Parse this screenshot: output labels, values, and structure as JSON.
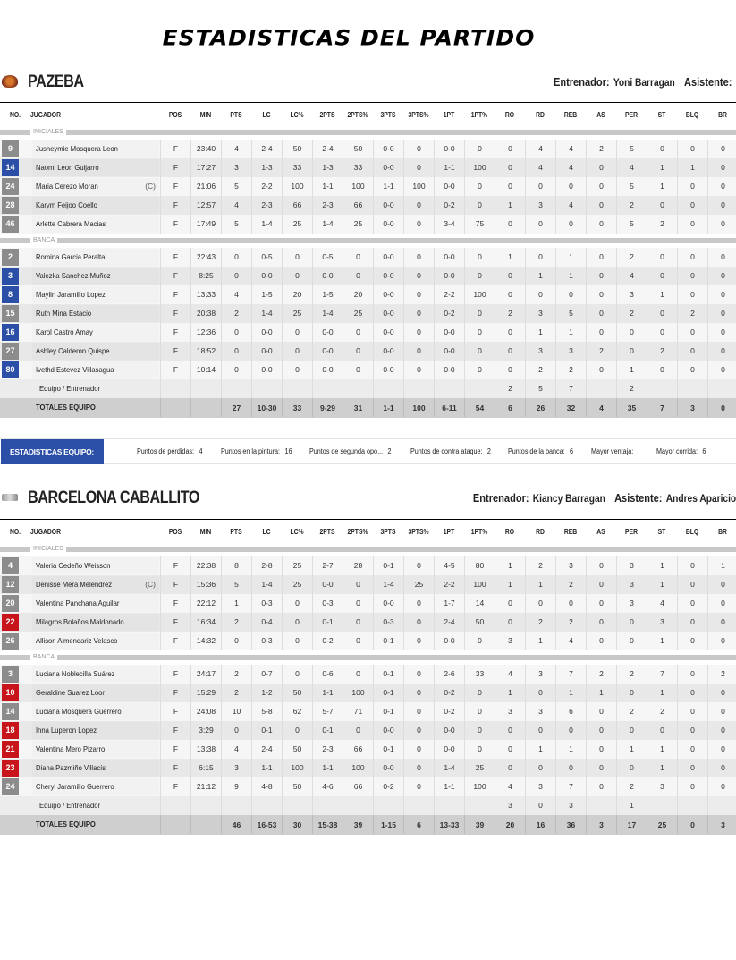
{
  "page_title": "ESTADISTICAS DEL PARTIDO",
  "colors": {
    "gray": "#8c8c8c",
    "blue": "#2b4fa6",
    "red": "#c8151b"
  },
  "columns": [
    "NO.",
    "JUGADOR",
    "POS",
    "MIN",
    "PTS",
    "LC",
    "LC%",
    "2PTS",
    "2PTS%",
    "3PTS",
    "3PTS%",
    "1PT",
    "1PT%",
    "RO",
    "RD",
    "REB",
    "AS",
    "PER",
    "ST",
    "BLQ",
    "BR"
  ],
  "section_labels": {
    "starters": "INICIALES",
    "bench": "BANCA"
  },
  "teams": [
    {
      "name": "PAZEBA",
      "logo_icon": "pazeba-crest-icon",
      "coach_label": "Entrenador:",
      "coach": "Yoni Barragan",
      "assistant_label": "Asistente:",
      "assistant": "",
      "starters": [
        {
          "no": "9",
          "badge": "gray",
          "name": "Jusheymie Mosquera Leon",
          "cap": "",
          "stats": [
            "F",
            "23:40",
            "4",
            "2-4",
            "50",
            "2-4",
            "50",
            "0-0",
            "0",
            "0-0",
            "0",
            "0",
            "4",
            "4",
            "2",
            "5",
            "0",
            "0",
            "0"
          ]
        },
        {
          "no": "14",
          "badge": "blue",
          "name": "Naomi Leon Guijarro",
          "cap": "",
          "stats": [
            "F",
            "17:27",
            "3",
            "1-3",
            "33",
            "1-3",
            "33",
            "0-0",
            "0",
            "1-1",
            "100",
            "0",
            "4",
            "4",
            "0",
            "4",
            "1",
            "1",
            "0"
          ]
        },
        {
          "no": "24",
          "badge": "gray",
          "name": "Maria Cerezo Moran",
          "cap": "(C)",
          "stats": [
            "F",
            "21:06",
            "5",
            "2-2",
            "100",
            "1-1",
            "100",
            "1-1",
            "100",
            "0-0",
            "0",
            "0",
            "0",
            "0",
            "0",
            "5",
            "1",
            "0",
            "0"
          ]
        },
        {
          "no": "28",
          "badge": "gray",
          "name": "Karym Feijoo Coello",
          "cap": "",
          "stats": [
            "F",
            "12:57",
            "4",
            "2-3",
            "66",
            "2-3",
            "66",
            "0-0",
            "0",
            "0-2",
            "0",
            "1",
            "3",
            "4",
            "0",
            "2",
            "0",
            "0",
            "0"
          ]
        },
        {
          "no": "46",
          "badge": "gray",
          "name": "Arlette Cabrera Macias",
          "cap": "",
          "stats": [
            "F",
            "17:49",
            "5",
            "1-4",
            "25",
            "1-4",
            "25",
            "0-0",
            "0",
            "3-4",
            "75",
            "0",
            "0",
            "0",
            "0",
            "5",
            "2",
            "0",
            "0"
          ]
        }
      ],
      "bench": [
        {
          "no": "2",
          "badge": "gray",
          "name": "Romina Garcia Peralta",
          "cap": "",
          "stats": [
            "F",
            "22:43",
            "0",
            "0-5",
            "0",
            "0-5",
            "0",
            "0-0",
            "0",
            "0-0",
            "0",
            "1",
            "0",
            "1",
            "0",
            "2",
            "0",
            "0",
            "0"
          ]
        },
        {
          "no": "3",
          "badge": "blue",
          "name": "Valezka Sanchez Muñoz",
          "cap": "",
          "stats": [
            "F",
            "8:25",
            "0",
            "0-0",
            "0",
            "0-0",
            "0",
            "0-0",
            "0",
            "0-0",
            "0",
            "0",
            "1",
            "1",
            "0",
            "4",
            "0",
            "0",
            "0"
          ]
        },
        {
          "no": "8",
          "badge": "blue",
          "name": "Maylin Jaramillo Lopez",
          "cap": "",
          "stats": [
            "F",
            "13:33",
            "4",
            "1-5",
            "20",
            "1-5",
            "20",
            "0-0",
            "0",
            "2-2",
            "100",
            "0",
            "0",
            "0",
            "0",
            "3",
            "1",
            "0",
            "0"
          ]
        },
        {
          "no": "15",
          "badge": "gray",
          "name": "Ruth Mina Estacio",
          "cap": "",
          "stats": [
            "F",
            "20:38",
            "2",
            "1-4",
            "25",
            "1-4",
            "25",
            "0-0",
            "0",
            "0-2",
            "0",
            "2",
            "3",
            "5",
            "0",
            "2",
            "0",
            "2",
            "0"
          ]
        },
        {
          "no": "16",
          "badge": "blue",
          "name": "Karol Castro Amay",
          "cap": "",
          "stats": [
            "F",
            "12:36",
            "0",
            "0-0",
            "0",
            "0-0",
            "0",
            "0-0",
            "0",
            "0-0",
            "0",
            "0",
            "1",
            "1",
            "0",
            "0",
            "0",
            "0",
            "0"
          ]
        },
        {
          "no": "27",
          "badge": "gray",
          "name": "Ashley Calderon Quispe",
          "cap": "",
          "stats": [
            "F",
            "18:52",
            "0",
            "0-0",
            "0",
            "0-0",
            "0",
            "0-0",
            "0",
            "0-0",
            "0",
            "0",
            "3",
            "3",
            "2",
            "0",
            "2",
            "0",
            "0"
          ]
        },
        {
          "no": "80",
          "badge": "blue",
          "name": "Ivethd Estevez Villasagua",
          "cap": "",
          "stats": [
            "F",
            "10:14",
            "0",
            "0-0",
            "0",
            "0-0",
            "0",
            "0-0",
            "0",
            "0-0",
            "0",
            "0",
            "2",
            "2",
            "0",
            "1",
            "0",
            "0",
            "0"
          ]
        }
      ],
      "team_row": {
        "name": "Equipo / Entrenador",
        "stats": [
          "",
          "",
          "",
          "",
          "",
          "",
          "",
          "",
          "",
          "",
          "",
          "2",
          "5",
          "7",
          "",
          "2",
          "",
          "",
          ""
        ]
      },
      "totals": {
        "name": "TOTALES EQUIPO",
        "stats": [
          "",
          "",
          "27",
          "10-30",
          "33",
          "9-29",
          "31",
          "1-1",
          "100",
          "6-11",
          "54",
          "6",
          "26",
          "32",
          "4",
          "35",
          "7",
          "3",
          "0"
        ]
      }
    },
    {
      "name": "BARCELONA CABALLITO",
      "logo_icon": "barcelona-caballito-crest-icon",
      "coach_label": "Entrenador:",
      "coach": "Kiancy Barragan",
      "assistant_label": "Asistente:",
      "assistant": "Andres Aparicio",
      "starters": [
        {
          "no": "4",
          "badge": "gray",
          "name": "Valeria Cedeño Weisson",
          "cap": "",
          "stats": [
            "F",
            "22:38",
            "8",
            "2-8",
            "25",
            "2-7",
            "28",
            "0-1",
            "0",
            "4-5",
            "80",
            "1",
            "2",
            "3",
            "0",
            "3",
            "1",
            "0",
            "1"
          ]
        },
        {
          "no": "12",
          "badge": "gray",
          "name": "Denisse Mera Melendrez",
          "cap": "(C)",
          "stats": [
            "F",
            "15:36",
            "5",
            "1-4",
            "25",
            "0-0",
            "0",
            "1-4",
            "25",
            "2-2",
            "100",
            "1",
            "1",
            "2",
            "0",
            "3",
            "1",
            "0",
            "0"
          ]
        },
        {
          "no": "20",
          "badge": "gray",
          "name": "Valentina Panchana Aguilar",
          "cap": "",
          "stats": [
            "F",
            "22:12",
            "1",
            "0-3",
            "0",
            "0-3",
            "0",
            "0-0",
            "0",
            "1-7",
            "14",
            "0",
            "0",
            "0",
            "0",
            "3",
            "4",
            "0",
            "0"
          ]
        },
        {
          "no": "22",
          "badge": "red",
          "name": "Milagros Bolaños Maldonado",
          "cap": "",
          "stats": [
            "F",
            "16:34",
            "2",
            "0-4",
            "0",
            "0-1",
            "0",
            "0-3",
            "0",
            "2-4",
            "50",
            "0",
            "2",
            "2",
            "0",
            "0",
            "3",
            "0",
            "0"
          ]
        },
        {
          "no": "26",
          "badge": "gray",
          "name": "Allison Almendariz Velasco",
          "cap": "",
          "stats": [
            "F",
            "14:32",
            "0",
            "0-3",
            "0",
            "0-2",
            "0",
            "0-1",
            "0",
            "0-0",
            "0",
            "3",
            "1",
            "4",
            "0",
            "0",
            "1",
            "0",
            "0"
          ]
        }
      ],
      "bench": [
        {
          "no": "3",
          "badge": "gray",
          "name": "Luciana Noblecilla Suárez",
          "cap": "",
          "stats": [
            "F",
            "24:17",
            "2",
            "0-7",
            "0",
            "0-6",
            "0",
            "0-1",
            "0",
            "2-6",
            "33",
            "4",
            "3",
            "7",
            "2",
            "2",
            "7",
            "0",
            "2"
          ]
        },
        {
          "no": "10",
          "badge": "red",
          "name": "Geraldine Suarez Loor",
          "cap": "",
          "stats": [
            "F",
            "15:29",
            "2",
            "1-2",
            "50",
            "1-1",
            "100",
            "0-1",
            "0",
            "0-2",
            "0",
            "1",
            "0",
            "1",
            "1",
            "0",
            "1",
            "0",
            "0"
          ]
        },
        {
          "no": "14",
          "badge": "gray",
          "name": "Luciana Mosquera Guerrero",
          "cap": "",
          "stats": [
            "F",
            "24:08",
            "10",
            "5-8",
            "62",
            "5-7",
            "71",
            "0-1",
            "0",
            "0-2",
            "0",
            "3",
            "3",
            "6",
            "0",
            "2",
            "2",
            "0",
            "0"
          ]
        },
        {
          "no": "18",
          "badge": "red",
          "name": "Inna Luperon Lopez",
          "cap": "",
          "stats": [
            "F",
            "3:29",
            "0",
            "0-1",
            "0",
            "0-1",
            "0",
            "0-0",
            "0",
            "0-0",
            "0",
            "0",
            "0",
            "0",
            "0",
            "0",
            "0",
            "0",
            "0"
          ]
        },
        {
          "no": "21",
          "badge": "red",
          "name": "Valentina Mero Pizarro",
          "cap": "",
          "stats": [
            "F",
            "13:38",
            "4",
            "2-4",
            "50",
            "2-3",
            "66",
            "0-1",
            "0",
            "0-0",
            "0",
            "0",
            "1",
            "1",
            "0",
            "1",
            "1",
            "0",
            "0"
          ]
        },
        {
          "no": "23",
          "badge": "red",
          "name": "Diana Pazmiño Villacís",
          "cap": "",
          "stats": [
            "F",
            "6:15",
            "3",
            "1-1",
            "100",
            "1-1",
            "100",
            "0-0",
            "0",
            "1-4",
            "25",
            "0",
            "0",
            "0",
            "0",
            "0",
            "1",
            "0",
            "0"
          ]
        },
        {
          "no": "24",
          "badge": "gray",
          "name": "Cheryl Jaramillo Guerrero",
          "cap": "",
          "stats": [
            "F",
            "21:12",
            "9",
            "4-8",
            "50",
            "4-6",
            "66",
            "0-2",
            "0",
            "1-1",
            "100",
            "4",
            "3",
            "7",
            "0",
            "2",
            "3",
            "0",
            "0"
          ]
        }
      ],
      "team_row": {
        "name": "Equipo / Entrenador",
        "stats": [
          "",
          "",
          "",
          "",
          "",
          "",
          "",
          "",
          "",
          "",
          "",
          "3",
          "0",
          "3",
          "",
          "1",
          "",
          "",
          ""
        ]
      },
      "totals": {
        "name": "TOTALES EQUIPO",
        "stats": [
          "",
          "",
          "46",
          "16-53",
          "30",
          "15-38",
          "39",
          "1-15",
          "6",
          "13-33",
          "39",
          "20",
          "16",
          "36",
          "3",
          "17",
          "25",
          "0",
          "3"
        ]
      }
    }
  ],
  "team_stats": {
    "label": "ESTADISTICAS EQUIPO:",
    "items": [
      {
        "label": "Puntos de pérdidas:",
        "value": "4"
      },
      {
        "label": "Puntos en la pintura:",
        "value": "16"
      },
      {
        "label": "Puntos de segunda opo...",
        "value": "2"
      },
      {
        "label": "Puntos de contra ataque:",
        "value": "2"
      },
      {
        "label": "Puntos de la banca:",
        "value": "6"
      },
      {
        "label": "Mayor ventaja:",
        "value": ""
      },
      {
        "label": "Mayor corrida:",
        "value": "6"
      }
    ]
  }
}
